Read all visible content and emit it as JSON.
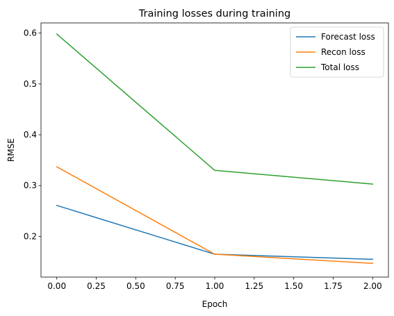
{
  "chart_data": {
    "type": "line",
    "title": "Training losses during training",
    "xlabel": "Epoch",
    "ylabel": "RMSE",
    "x": [
      0,
      1,
      2
    ],
    "xlim": [
      -0.1,
      2.1
    ],
    "ylim": [
      0.12,
      0.62
    ],
    "xticks": [
      "0.00",
      "0.25",
      "0.50",
      "0.75",
      "1.00",
      "1.25",
      "1.50",
      "1.75",
      "2.00"
    ],
    "yticks": [
      "0.2",
      "0.3",
      "0.4",
      "0.5",
      "0.6"
    ],
    "grid": false,
    "legend_position": "top-right",
    "series": [
      {
        "name": "Forecast loss",
        "color": "#1f77b4",
        "values": [
          0.261,
          0.165,
          0.155
        ]
      },
      {
        "name": "Recon loss",
        "color": "#ff7f0e",
        "values": [
          0.337,
          0.165,
          0.147
        ]
      },
      {
        "name": "Total loss",
        "color": "#2ca02c",
        "values": [
          0.598,
          0.33,
          0.303
        ]
      }
    ]
  }
}
